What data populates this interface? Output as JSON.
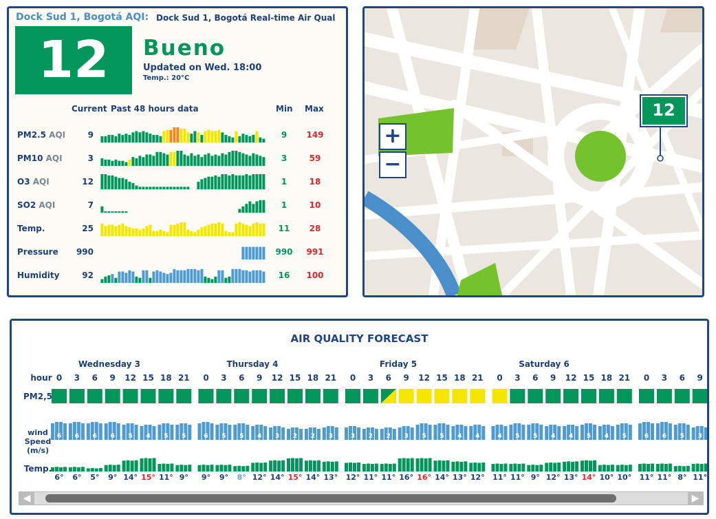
{
  "station": {
    "location_label": "Dock Sud 1, Bogotá AQI:",
    "subtitle": "Dock Sud 1, Bogotá Real-time Air Qual",
    "aqi": "12",
    "status": "Bueno",
    "updated": "Updated on Wed. 18:00",
    "temp": "Temp.: 20°C"
  },
  "table_header": {
    "current": "Current",
    "past": "Past 48  hours data",
    "min": "Min",
    "max": "Max"
  },
  "rows": [
    {
      "label": "PM2.5",
      "sub": "AQI",
      "current": "9",
      "min": "9",
      "max": "149",
      "kind": "aqi",
      "values": [
        5,
        5,
        6,
        6,
        5,
        7,
        6,
        7,
        6,
        8,
        9,
        8,
        9,
        8,
        7,
        6,
        6,
        5,
        9,
        10,
        10,
        12,
        12,
        11,
        11,
        8,
        7,
        9,
        8,
        6,
        9,
        10,
        9,
        9,
        10,
        8,
        6,
        5,
        4,
        9,
        5,
        7,
        6,
        5,
        6,
        9,
        4,
        3
      ],
      "colors": [
        "g",
        "g",
        "g",
        "g",
        "g",
        "g",
        "g",
        "g",
        "g",
        "g",
        "g",
        "g",
        "g",
        "g",
        "g",
        "g",
        "g",
        "g",
        "y",
        "y",
        "o",
        "o",
        "o",
        "y",
        "y",
        "y",
        "g",
        "g",
        "y",
        "g",
        "y",
        "y",
        "y",
        "y",
        "y",
        "g",
        "g",
        "g",
        "g",
        "y",
        "g",
        "g",
        "g",
        "g",
        "g",
        "y",
        "g",
        "g"
      ]
    },
    {
      "label": "PM10",
      "sub": "AQI",
      "current": "3",
      "min": "3",
      "max": "59",
      "kind": "aqi",
      "values": [
        6,
        5,
        5,
        4,
        5,
        4,
        4,
        3,
        5,
        7,
        6,
        8,
        7,
        9,
        9,
        8,
        11,
        11,
        10,
        9,
        11,
        11,
        12,
        12,
        9,
        8,
        10,
        8,
        9,
        7,
        9,
        10,
        8,
        9,
        8,
        10,
        9,
        11,
        12,
        12,
        11,
        10,
        9,
        8,
        10,
        9,
        8,
        7
      ],
      "colors": [
        "g",
        "g",
        "g",
        "g",
        "g",
        "g",
        "g",
        "g",
        "y",
        "g",
        "g",
        "g",
        "g",
        "g",
        "g",
        "g",
        "g",
        "g",
        "g",
        "g",
        "y",
        "y",
        "g",
        "g",
        "g",
        "g",
        "g",
        "g",
        "g",
        "g",
        "g",
        "g",
        "g",
        "g",
        "g",
        "g",
        "g",
        "g",
        "g",
        "g",
        "g",
        "g",
        "g",
        "g",
        "g",
        "g",
        "g",
        "g"
      ]
    },
    {
      "label": "O3",
      "sub": "AQI",
      "current": "12",
      "min": "1",
      "max": "18",
      "kind": "aqi",
      "values": [
        12,
        12,
        11,
        11,
        10,
        9,
        9,
        8,
        6,
        5,
        3,
        2,
        2,
        2,
        2,
        2,
        2,
        2,
        2,
        2,
        2,
        2,
        2,
        2,
        2,
        2,
        0,
        0,
        6,
        8,
        9,
        10,
        10,
        11,
        10,
        12,
        12,
        11,
        12,
        11,
        11,
        11,
        12,
        11,
        12,
        12,
        12,
        12
      ],
      "colors": [
        "g",
        "g",
        "g",
        "g",
        "g",
        "g",
        "g",
        "g",
        "g",
        "g",
        "g",
        "g",
        "g",
        "g",
        "g",
        "g",
        "g",
        "g",
        "g",
        "g",
        "g",
        "g",
        "g",
        "g",
        "g",
        "g",
        "g",
        "g",
        "g",
        "g",
        "g",
        "g",
        "g",
        "g",
        "g",
        "g",
        "g",
        "g",
        "g",
        "g",
        "g",
        "g",
        "g",
        "g",
        "g",
        "g",
        "g",
        "g"
      ]
    },
    {
      "label": "SO2",
      "sub": "AQI",
      "current": "7",
      "min": "1",
      "max": "10",
      "kind": "aqi",
      "values": [
        5,
        1,
        1,
        1,
        1,
        1,
        1,
        1,
        0,
        0,
        0,
        0,
        0,
        0,
        0,
        0,
        0,
        0,
        0,
        0,
        0,
        0,
        0,
        0,
        0,
        0,
        0,
        0,
        0,
        0,
        0,
        0,
        0,
        0,
        0,
        0,
        0,
        0,
        0,
        0,
        3,
        5,
        7,
        9,
        7,
        9,
        10,
        10
      ],
      "colors": [
        "g",
        "g",
        "g",
        "g",
        "g",
        "g",
        "g",
        "g",
        "g",
        "g",
        "g",
        "g",
        "g",
        "g",
        "g",
        "g",
        "g",
        "g",
        "g",
        "g",
        "g",
        "g",
        "g",
        "g",
        "g",
        "g",
        "g",
        "g",
        "g",
        "g",
        "g",
        "g",
        "g",
        "g",
        "g",
        "g",
        "g",
        "g",
        "g",
        "g",
        "g",
        "g",
        "g",
        "g",
        "g",
        "g",
        "g",
        "g"
      ]
    },
    {
      "label": "Temp.",
      "sub": "",
      "current": "25",
      "min": "11",
      "max": "28",
      "kind": "temp",
      "values": [
        10,
        8,
        9,
        9,
        8,
        9,
        10,
        8,
        7,
        6,
        6,
        5,
        6,
        8,
        9,
        4,
        4,
        5,
        4,
        3,
        9,
        9,
        10,
        11,
        11,
        5,
        4,
        3,
        5,
        7,
        8,
        9,
        10,
        10,
        11,
        10,
        4,
        3,
        3,
        10,
        11,
        10,
        9,
        8,
        10,
        11,
        10,
        10
      ],
      "colors": [
        "y",
        "y",
        "y",
        "y",
        "y",
        "y",
        "y",
        "y",
        "y",
        "y",
        "y",
        "y",
        "y",
        "y",
        "y",
        "y",
        "y",
        "y",
        "y",
        "y",
        "y",
        "y",
        "y",
        "y",
        "y",
        "y",
        "y",
        "y",
        "y",
        "y",
        "y",
        "y",
        "y",
        "y",
        "y",
        "y",
        "y",
        "y",
        "y",
        "y",
        "y",
        "y",
        "y",
        "y",
        "y",
        "y",
        "y",
        "y"
      ]
    },
    {
      "label": "Pressure",
      "sub": "",
      "current": "990",
      "min": "990",
      "max": "991",
      "kind": "press",
      "values": [
        0,
        0,
        0,
        0,
        0,
        0,
        0,
        0,
        0,
        0,
        0,
        0,
        0,
        0,
        0,
        0,
        0,
        0,
        0,
        0,
        0,
        0,
        0,
        0,
        0,
        0,
        0,
        0,
        0,
        0,
        0,
        0,
        0,
        0,
        0,
        0,
        0,
        0,
        0,
        0,
        0,
        10,
        10,
        10,
        10,
        10,
        10,
        10
      ],
      "colors": [
        "b",
        "b",
        "b",
        "b",
        "b",
        "b",
        "b",
        "b",
        "b",
        "b",
        "b",
        "b",
        "b",
        "b",
        "b",
        "b",
        "b",
        "b",
        "b",
        "b",
        "b",
        "b",
        "b",
        "b",
        "b",
        "b",
        "b",
        "b",
        "b",
        "b",
        "b",
        "b",
        "b",
        "b",
        "b",
        "b",
        "b",
        "b",
        "b",
        "b",
        "b",
        "b",
        "b",
        "b",
        "b",
        "b",
        "b",
        "b"
      ]
    },
    {
      "label": "Humidity",
      "sub": "",
      "current": "92",
      "min": "16",
      "max": "100",
      "kind": "hum",
      "values": [
        3,
        5,
        6,
        7,
        4,
        9,
        9,
        8,
        10,
        9,
        5,
        4,
        10,
        10,
        4,
        9,
        10,
        9,
        8,
        7,
        8,
        11,
        10,
        10,
        10,
        11,
        11,
        11,
        10,
        11,
        5,
        4,
        3,
        5,
        10,
        10,
        4,
        5,
        11,
        11,
        11,
        10,
        10,
        9,
        10,
        10,
        10,
        9
      ],
      "colors": [
        "g",
        "g",
        "g",
        "b",
        "g",
        "b",
        "b",
        "b",
        "b",
        "b",
        "g",
        "g",
        "b",
        "b",
        "g",
        "b",
        "b",
        "b",
        "b",
        "b",
        "b",
        "b",
        "b",
        "b",
        "b",
        "b",
        "b",
        "b",
        "b",
        "b",
        "g",
        "g",
        "g",
        "g",
        "b",
        "b",
        "g",
        "g",
        "b",
        "b",
        "b",
        "b",
        "b",
        "b",
        "b",
        "b",
        "b",
        "b"
      ]
    }
  ],
  "map": {
    "zoom_in": "+",
    "zoom_out": "−",
    "pin_value": "12"
  },
  "forecast": {
    "title": "AIR QUALITY FORECAST",
    "days": [
      "Wednesday 3",
      "Thursday 4",
      "Friday 5",
      "Saturday 6"
    ],
    "row_labels": {
      "hour": "hour",
      "pm25": "PM2,5",
      "wind_1": "wind",
      "wind_2": "Speed",
      "wind_3": "(m/s)",
      "temp": "Temp."
    },
    "hours": [
      "0",
      "3",
      "6",
      "9",
      "12",
      "15",
      "18",
      "21",
      "0",
      "3",
      "6",
      "9",
      "12",
      "15",
      "18",
      "21",
      "0",
      "3",
      "6",
      "9",
      "12",
      "15",
      "18",
      "21",
      "0",
      "3",
      "6",
      "9",
      "12",
      "15",
      "18",
      "21",
      "0",
      "3",
      "6",
      "9"
    ],
    "pm25_colors": [
      "g",
      "g",
      "g",
      "g",
      "g",
      "g",
      "g",
      "g",
      "g",
      "g",
      "g",
      "g",
      "g",
      "g",
      "g",
      "g",
      "g",
      "g",
      "gy",
      "y",
      "y",
      "y",
      "y",
      "y",
      "y",
      "g",
      "g",
      "g",
      "g",
      "g",
      "g",
      "g",
      "g",
      "g",
      "g",
      "g"
    ],
    "wind": [
      "6",
      "6",
      "6",
      "6",
      "5",
      "4",
      "5",
      "5",
      "6",
      "5",
      "5",
      "4",
      "3",
      "2",
      "2",
      "3",
      "3",
      "2",
      "2",
      "3",
      "5",
      "5",
      "4",
      "4",
      "4",
      "5",
      "5",
      "4",
      "4",
      "5",
      "4",
      "5",
      "6",
      "6",
      "5",
      "3"
    ],
    "temp": [
      "6°",
      "6°",
      "5°",
      "9°",
      "14°",
      "15°",
      "11°",
      "9°",
      "9°",
      "9°",
      "8°",
      "12°",
      "14°",
      "15°",
      "14°",
      "13°",
      "12°",
      "11°",
      "11°",
      "16°",
      "16°",
      "14°",
      "13°",
      "12°",
      "11°",
      "11°",
      "9°",
      "12°",
      "13°",
      "14°",
      "10°",
      "10°",
      "11°",
      "11°",
      "8°",
      "11°"
    ],
    "temp_colors": [
      "n",
      "n",
      "n",
      "n",
      "n",
      "r",
      "n",
      "n",
      "n",
      "n",
      "c",
      "n",
      "n",
      "r",
      "n",
      "n",
      "n",
      "n",
      "n",
      "n",
      "r",
      "n",
      "n",
      "n",
      "n",
      "n",
      "n",
      "n",
      "n",
      "r",
      "n",
      "n",
      "n",
      "n",
      "n",
      "n"
    ],
    "temp_levels": [
      2,
      2,
      1,
      4,
      8,
      10,
      5,
      4,
      4,
      4,
      3,
      6,
      8,
      10,
      8,
      7,
      6,
      5,
      5,
      10,
      10,
      8,
      7,
      6,
      5,
      5,
      4,
      6,
      7,
      8,
      4,
      4,
      5,
      5,
      3,
      5
    ],
    "scroll_left": "◀",
    "scroll_right": "▶"
  },
  "colors": {
    "green": "#03965a",
    "yellow": "#f5e600",
    "orange": "#f08a1c",
    "blue": "#4e9bd0",
    "red": "#e0262e",
    "navy": "#1d4589"
  }
}
